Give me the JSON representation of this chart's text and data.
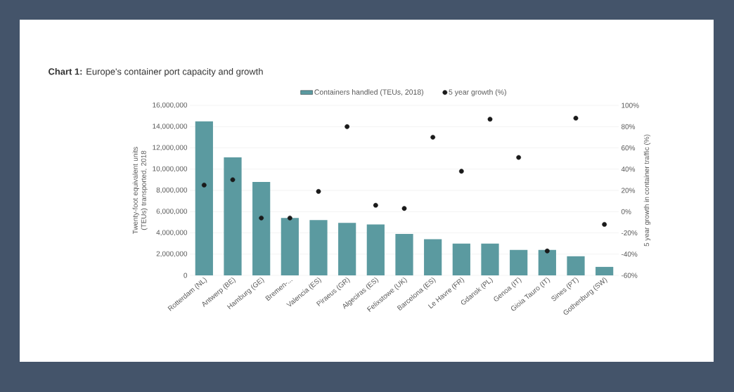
{
  "chart_data": {
    "type": "bar",
    "title": "**Chart 1:** Europe's container port capacity and growth",
    "categories": [
      "Rotterdam (NL)",
      "Antwerp (BE)",
      "Hamburg (GE)",
      "Bremen-...",
      "Valencia (ES)",
      "Piraeus (GR)",
      "Algeciras (ES)",
      "Felixstowe (UK)",
      "Barcelona (ES)",
      "Le Havre (FR)",
      "Gdansk (PL)",
      "Genoa (IT)",
      "Gioia Tauro (IT)",
      "Sines (PT)",
      "Gothenburg (SW)"
    ],
    "series": [
      {
        "name": "Containers handled (TEUs, 2018)",
        "color": "#5b9aa0",
        "values": [
          14500000,
          11100000,
          8800000,
          5400000,
          5200000,
          4950000,
          4800000,
          3900000,
          3400000,
          3000000,
          3000000,
          2400000,
          2400000,
          1800000,
          800000
        ]
      },
      {
        "name": "5 year growth (%)",
        "type": "scatter",
        "axis": "y2",
        "color": "#1a1a1a",
        "values": [
          25,
          30,
          -6,
          -6,
          19,
          80,
          6,
          3,
          70,
          38,
          87,
          51,
          -37,
          88,
          -12
        ]
      }
    ],
    "ylabel": "Twenty-foot equivalent units (TEUs) transported, 2018",
    "y2label": "5 year growth in container traffic (%)",
    "ylim": [
      0,
      16000000
    ],
    "yticks": [
      {
        "value": 0,
        "label": "0"
      },
      {
        "value": 2000000,
        "label": "2,000,000"
      },
      {
        "value": 4000000,
        "label": "4,000,000"
      },
      {
        "value": 6000000,
        "label": "6,000,000"
      },
      {
        "value": 8000000,
        "label": "8,000,000"
      },
      {
        "value": 10000000,
        "label": "10,000,000"
      },
      {
        "value": 12000000,
        "label": "12,000,000"
      },
      {
        "value": 14000000,
        "label": "14,000,000"
      },
      {
        "value": 16000000,
        "label": "16,000,000"
      }
    ],
    "y2lim": [
      -60,
      100
    ],
    "y2ticks": [
      {
        "value": -60,
        "label": "-60%"
      },
      {
        "value": -40,
        "label": "-40%"
      },
      {
        "value": -20,
        "label": "-20%"
      },
      {
        "value": 0,
        "label": "0%"
      },
      {
        "value": 20,
        "label": "20%"
      },
      {
        "value": 40,
        "label": "40%"
      },
      {
        "value": 60,
        "label": "60%"
      },
      {
        "value": 80,
        "label": "80%"
      },
      {
        "value": 100,
        "label": "100%"
      }
    ],
    "grid": "y",
    "legend": "top"
  }
}
